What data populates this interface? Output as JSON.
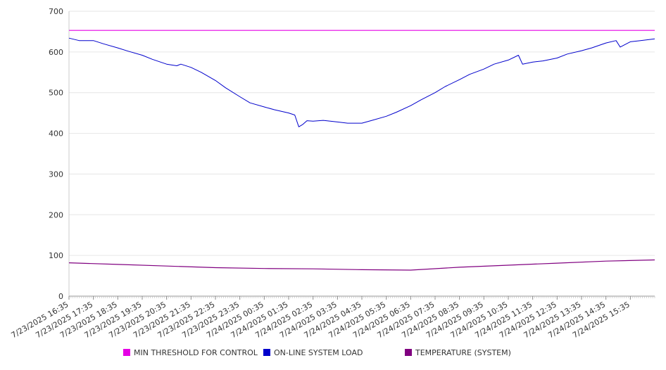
{
  "chart_data": {
    "type": "line",
    "title": "",
    "xlabel": "",
    "ylabel": "",
    "ylim": [
      0,
      700
    ],
    "y_ticks": [
      0,
      100,
      200,
      300,
      400,
      500,
      600,
      700
    ],
    "x_ticks": [
      "7/23/2025 16:35",
      "7/23/2025 17:35",
      "7/23/2025 18:35",
      "7/23/2025 19:35",
      "7/23/2025 20:35",
      "7/23/2025 21:35",
      "7/23/2025 22:35",
      "7/23/2025 23:35",
      "7/24/2025 00:35",
      "7/24/2025 01:35",
      "7/24/2025 02:35",
      "7/24/2025 03:35",
      "7/24/2025 04:35",
      "7/24/2025 05:35",
      "7/24/2025 06:35",
      "7/24/2025 07:35",
      "7/24/2025 08:35",
      "7/24/2025 09:35",
      "7/24/2025 10:35",
      "7/24/2025 11:35",
      "7/24/2025 12:35",
      "7/24/2025 13:35",
      "7/24/2025 14:35",
      "7/24/2025 15:35"
    ],
    "grid": true,
    "legend_position": "bottom",
    "series": [
      {
        "name": "MIN THRESHOLD FOR CONTROL",
        "color": "#e500e5",
        "points": [
          [
            "7/23/2025 16:35",
            653
          ],
          [
            "7/24/2025 16:35",
            653
          ]
        ]
      },
      {
        "name": "ON-LINE SYSTEM LOAD",
        "color": "#0000cc",
        "points": [
          [
            "7/23/2025 16:35",
            634
          ],
          [
            "7/23/2025 17:00",
            628
          ],
          [
            "7/23/2025 17:35",
            628
          ],
          [
            "7/23/2025 18:00",
            620
          ],
          [
            "7/23/2025 18:35",
            610
          ],
          [
            "7/23/2025 19:00",
            602
          ],
          [
            "7/23/2025 19:35",
            592
          ],
          [
            "7/23/2025 20:00",
            582
          ],
          [
            "7/23/2025 20:35",
            570
          ],
          [
            "7/23/2025 21:00",
            566
          ],
          [
            "7/23/2025 21:10",
            570
          ],
          [
            "7/23/2025 21:35",
            562
          ],
          [
            "7/23/2025 22:00",
            550
          ],
          [
            "7/23/2025 22:35",
            530
          ],
          [
            "7/23/2025 23:00",
            512
          ],
          [
            "7/23/2025 23:35",
            490
          ],
          [
            "7/24/2025 00:00",
            475
          ],
          [
            "7/24/2025 00:35",
            465
          ],
          [
            "7/24/2025 01:00",
            458
          ],
          [
            "7/24/2025 01:35",
            450
          ],
          [
            "7/24/2025 01:50",
            445
          ],
          [
            "7/24/2025 02:00",
            416
          ],
          [
            "7/24/2025 02:10",
            422
          ],
          [
            "7/24/2025 02:20",
            431
          ],
          [
            "7/24/2025 02:35",
            430
          ],
          [
            "7/24/2025 03:00",
            432
          ],
          [
            "7/24/2025 03:35",
            428
          ],
          [
            "7/24/2025 04:00",
            425
          ],
          [
            "7/24/2025 04:35",
            425
          ],
          [
            "7/24/2025 05:00",
            432
          ],
          [
            "7/24/2025 05:35",
            442
          ],
          [
            "7/24/2025 06:00",
            452
          ],
          [
            "7/24/2025 06:35",
            468
          ],
          [
            "7/24/2025 07:00",
            482
          ],
          [
            "7/24/2025 07:35",
            500
          ],
          [
            "7/24/2025 08:00",
            515
          ],
          [
            "7/24/2025 08:35",
            532
          ],
          [
            "7/24/2025 09:00",
            545
          ],
          [
            "7/24/2025 09:35",
            558
          ],
          [
            "7/24/2025 10:00",
            570
          ],
          [
            "7/24/2025 10:35",
            580
          ],
          [
            "7/24/2025 11:00",
            592
          ],
          [
            "7/24/2025 11:10",
            570
          ],
          [
            "7/24/2025 11:35",
            575
          ],
          [
            "7/24/2025 12:00",
            578
          ],
          [
            "7/24/2025 12:35",
            585
          ],
          [
            "7/24/2025 13:00",
            595
          ],
          [
            "7/24/2025 13:35",
            603
          ],
          [
            "7/24/2025 14:00",
            610
          ],
          [
            "7/24/2025 14:35",
            622
          ],
          [
            "7/24/2025 15:00",
            628
          ],
          [
            "7/24/2025 15:10",
            612
          ],
          [
            "7/24/2025 15:35",
            625
          ],
          [
            "7/24/2025 16:00",
            628
          ],
          [
            "7/24/2025 16:35",
            632
          ]
        ]
      },
      {
        "name": "TEMPERATURE (SYSTEM)",
        "color": "#800080",
        "points": [
          [
            "7/23/2025 16:35",
            82
          ],
          [
            "7/23/2025 18:35",
            78
          ],
          [
            "7/23/2025 20:35",
            74
          ],
          [
            "7/23/2025 22:35",
            70
          ],
          [
            "7/24/2025 00:35",
            68
          ],
          [
            "7/24/2025 02:35",
            67
          ],
          [
            "7/24/2025 04:35",
            65
          ],
          [
            "7/24/2025 06:35",
            64
          ],
          [
            "7/24/2025 08:35",
            71
          ],
          [
            "7/24/2025 10:35",
            76
          ],
          [
            "7/24/2025 12:35",
            81
          ],
          [
            "7/24/2025 14:35",
            86
          ],
          [
            "7/24/2025 16:35",
            89
          ]
        ]
      }
    ]
  }
}
